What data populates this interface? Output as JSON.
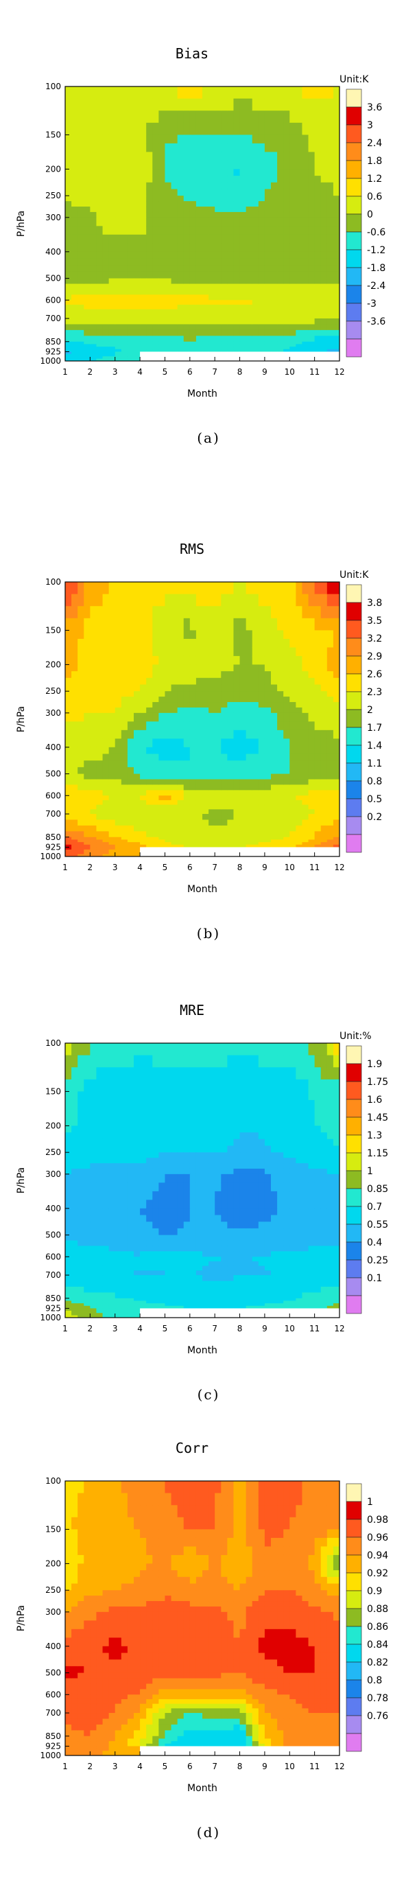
{
  "chart_data": [
    {
      "type": "heatmap",
      "title": "Bias",
      "panel_label": "(a)",
      "xlabel": "Month",
      "ylabel": "P/hPa",
      "x": [
        1,
        2,
        3,
        4,
        5,
        6,
        7,
        8,
        9,
        10,
        11,
        12
      ],
      "y": [
        100,
        150,
        200,
        250,
        300,
        400,
        500,
        600,
        700,
        850,
        925,
        1000
      ],
      "y_scale": "log",
      "unit": "Unit:K",
      "legend_levels": [
        "3.6",
        "3",
        "2.4",
        "1.8",
        "1.2",
        "0.6",
        "0",
        "-0.6",
        "-1.2",
        "-1.8",
        "-2.4",
        "-3",
        "-3.6"
      ],
      "colors": [
        "#fff6b3",
        "#e00000",
        "#ff5a1f",
        "#ff8c1a",
        "#ffb000",
        "#ffe000",
        "#d6ec10",
        "#8dbb22",
        "#22e8d0",
        "#00d8ee",
        "#22b8f5",
        "#1b84ea",
        "#5d7cf0",
        "#a78bf0",
        "#e07cf0"
      ],
      "z": [
        [
          0.5,
          0.6,
          0.4,
          0.3,
          0.6,
          0.9,
          0.7,
          0.2,
          0.4,
          0.6,
          0.8,
          0.6
        ],
        [
          0.3,
          0.5,
          0.2,
          0.1,
          -0.5,
          -0.7,
          -0.7,
          -0.6,
          -0.5,
          -0.4,
          0.1,
          0.3
        ],
        [
          0.4,
          0.3,
          0.2,
          0.6,
          -0.7,
          -0.9,
          -1.0,
          -1.3,
          -0.8,
          -0.5,
          0.0,
          0.2
        ],
        [
          0.1,
          0.2,
          0.3,
          0.1,
          -0.5,
          -0.7,
          -0.8,
          -0.9,
          -0.6,
          -0.4,
          -0.2,
          0.0
        ],
        [
          -0.2,
          -0.1,
          0.3,
          0.2,
          -0.3,
          -0.4,
          -0.5,
          -0.5,
          -0.4,
          -0.3,
          -0.3,
          -0.3
        ],
        [
          -0.3,
          -0.3,
          -0.2,
          -0.2,
          -0.3,
          -0.3,
          -0.3,
          -0.4,
          -0.3,
          -0.3,
          -0.3,
          -0.3
        ],
        [
          -0.2,
          -0.2,
          -0.1,
          -0.1,
          -0.1,
          -0.2,
          -0.2,
          -0.2,
          -0.1,
          -0.1,
          -0.1,
          -0.1
        ],
        [
          0.7,
          0.8,
          0.9,
          1.0,
          0.9,
          0.8,
          0.7,
          0.7,
          0.6,
          0.5,
          0.5,
          0.6
        ],
        [
          0.2,
          0.3,
          0.3,
          0.2,
          0.2,
          0.2,
          0.3,
          0.3,
          0.3,
          0.3,
          0.2,
          0.2
        ],
        [
          -1.2,
          -1.1,
          -1.0,
          -0.9,
          -0.8,
          -0.7,
          -0.8,
          -0.8,
          -0.9,
          -1.0,
          -1.4,
          -1.5
        ],
        [
          -1.9,
          -1.5,
          -1.3,
          -1.1,
          -1.0,
          -0.9,
          -0.9,
          -1.0,
          -1.1,
          -1.3,
          -1.6,
          -2.0
        ],
        [
          -1.5,
          -1.2,
          -1.0,
          null,
          null,
          null,
          null,
          null,
          null,
          null,
          null,
          null
        ]
      ]
    },
    {
      "type": "heatmap",
      "title": "RMS",
      "panel_label": "(b)",
      "xlabel": "Month",
      "ylabel": "P/hPa",
      "x": [
        1,
        2,
        3,
        4,
        5,
        6,
        7,
        8,
        9,
        10,
        11,
        12
      ],
      "y": [
        100,
        150,
        200,
        250,
        300,
        400,
        500,
        600,
        700,
        850,
        925,
        1000
      ],
      "y_scale": "log",
      "unit": "Unit:K",
      "legend_levels": [
        "3.8",
        "3.5",
        "3.2",
        "2.9",
        "2.6",
        "2.3",
        "2",
        "1.7",
        "1.4",
        "1.1",
        "0.8",
        "0.5",
        "0.2"
      ],
      "colors": [
        "#fff6b3",
        "#e00000",
        "#ff5a1f",
        "#ff8c1a",
        "#ffb000",
        "#ffe000",
        "#d6ec10",
        "#8dbb22",
        "#22e8d0",
        "#00d8ee",
        "#22b8f5",
        "#1b84ea",
        "#5d7cf0",
        "#a78bf0",
        "#e07cf0"
      ],
      "z": [
        [
          3.6,
          2.8,
          2.6,
          2.5,
          2.4,
          2.5,
          2.5,
          2.3,
          2.5,
          2.5,
          3.3,
          3.9
        ],
        [
          2.8,
          2.5,
          2.3,
          2.4,
          2.1,
          1.9,
          2.2,
          1.9,
          2.1,
          2.4,
          2.5,
          2.6
        ],
        [
          2.7,
          2.5,
          2.4,
          2.5,
          2.2,
          2.2,
          2.1,
          2.0,
          2.0,
          2.2,
          2.4,
          2.8
        ],
        [
          2.5,
          2.4,
          2.4,
          2.3,
          2.0,
          1.9,
          1.9,
          1.8,
          1.9,
          2.1,
          2.2,
          2.4
        ],
        [
          2.4,
          2.3,
          2.3,
          2.0,
          1.7,
          1.6,
          1.7,
          1.5,
          1.6,
          1.9,
          2.1,
          2.2
        ],
        [
          2.0,
          2.1,
          2.0,
          1.4,
          1.3,
          1.4,
          1.4,
          1.3,
          1.4,
          1.7,
          1.8,
          1.9
        ],
        [
          2.1,
          1.9,
          1.9,
          1.6,
          1.5,
          1.4,
          1.5,
          1.5,
          1.6,
          1.7,
          1.8,
          1.9
        ],
        [
          2.6,
          2.4,
          2.3,
          2.3,
          2.8,
          2.2,
          2.2,
          2.2,
          2.2,
          2.3,
          2.4,
          2.5
        ],
        [
          2.4,
          2.3,
          2.1,
          2.0,
          2.0,
          2.1,
          1.9,
          2.0,
          2.0,
          2.1,
          2.3,
          2.5
        ],
        [
          3.2,
          2.9,
          2.6,
          2.4,
          2.2,
          2.1,
          2.1,
          2.1,
          2.2,
          2.3,
          2.6,
          3.0
        ],
        [
          3.6,
          3.2,
          2.9,
          2.7,
          2.4,
          2.3,
          2.3,
          2.3,
          2.4,
          2.5,
          2.9,
          3.3
        ],
        [
          3.4,
          3.0,
          2.8,
          null,
          null,
          null,
          null,
          null,
          null,
          null,
          null,
          null
        ]
      ]
    },
    {
      "type": "heatmap",
      "title": "MRE",
      "panel_label": "(c)",
      "xlabel": "Month",
      "ylabel": "P/hPa",
      "x": [
        1,
        2,
        3,
        4,
        5,
        6,
        7,
        8,
        9,
        10,
        11,
        12
      ],
      "y": [
        100,
        150,
        200,
        250,
        300,
        400,
        500,
        600,
        700,
        850,
        925,
        1000
      ],
      "y_scale": "log",
      "unit": "Unit:%",
      "legend_levels": [
        "1.9",
        "1.75",
        "1.6",
        "1.45",
        "1.3",
        "1.15",
        "1",
        "0.85",
        "0.7",
        "0.55",
        "0.4",
        "0.25",
        "0.1"
      ],
      "colors": [
        "#fff6b3",
        "#e00000",
        "#ff5a1f",
        "#ff8c1a",
        "#ffb000",
        "#ffe000",
        "#d6ec10",
        "#8dbb22",
        "#22e8d0",
        "#00d8ee",
        "#22b8f5",
        "#1b84ea",
        "#5d7cf0",
        "#a78bf0",
        "#e07cf0"
      ],
      "z": [
        [
          1.1,
          0.85,
          0.8,
          0.75,
          0.8,
          0.8,
          0.8,
          0.75,
          0.8,
          0.8,
          0.9,
          1.25
        ],
        [
          0.78,
          0.62,
          0.58,
          0.6,
          0.55,
          0.58,
          0.58,
          0.55,
          0.55,
          0.6,
          0.72,
          0.8
        ],
        [
          0.72,
          0.66,
          0.62,
          0.66,
          0.58,
          0.6,
          0.62,
          0.56,
          0.56,
          0.62,
          0.7,
          0.75
        ],
        [
          0.66,
          0.62,
          0.6,
          0.62,
          0.56,
          0.56,
          0.56,
          0.52,
          0.54,
          0.58,
          0.64,
          0.68
        ],
        [
          0.55,
          0.5,
          0.5,
          0.5,
          0.4,
          0.4,
          0.42,
          0.36,
          0.38,
          0.45,
          0.52,
          0.55
        ],
        [
          0.5,
          0.48,
          0.46,
          0.4,
          0.3,
          0.4,
          0.4,
          0.32,
          0.36,
          0.44,
          0.48,
          0.5
        ],
        [
          0.52,
          0.5,
          0.48,
          0.44,
          0.4,
          0.42,
          0.42,
          0.42,
          0.44,
          0.46,
          0.48,
          0.5
        ],
        [
          0.64,
          0.6,
          0.58,
          0.56,
          0.62,
          0.58,
          0.56,
          0.54,
          0.56,
          0.58,
          0.6,
          0.64
        ],
        [
          0.6,
          0.58,
          0.56,
          0.54,
          0.54,
          0.56,
          0.52,
          0.54,
          0.54,
          0.56,
          0.6,
          0.64
        ],
        [
          0.8,
          0.76,
          0.72,
          0.68,
          0.66,
          0.64,
          0.64,
          0.64,
          0.66,
          0.68,
          0.74,
          0.8
        ],
        [
          0.98,
          0.86,
          0.8,
          0.76,
          0.72,
          0.7,
          0.7,
          0.7,
          0.72,
          0.76,
          0.82,
          0.9
        ],
        [
          1.1,
          0.9,
          0.8,
          null,
          null,
          null,
          null,
          null,
          null,
          null,
          null,
          null
        ]
      ]
    },
    {
      "type": "heatmap",
      "title": "Corr",
      "panel_label": "(d)",
      "xlabel": "Month",
      "ylabel": "P/hPa",
      "x": [
        1,
        2,
        3,
        4,
        5,
        6,
        7,
        8,
        9,
        10,
        11,
        12
      ],
      "y": [
        100,
        150,
        200,
        250,
        300,
        400,
        500,
        600,
        700,
        850,
        925,
        1000
      ],
      "y_scale": "log",
      "unit": "",
      "legend_levels": [
        "1",
        "0.98",
        "0.96",
        "0.94",
        "0.92",
        "0.9",
        "0.88",
        "0.86",
        "0.84",
        "0.82",
        "0.8",
        "0.78",
        "0.76"
      ],
      "colors": [
        "#fff6b3",
        "#e00000",
        "#ff5a1f",
        "#ff8c1a",
        "#ffb000",
        "#ffe000",
        "#d6ec10",
        "#8dbb22",
        "#22e8d0",
        "#00d8ee",
        "#22b8f5",
        "#1b84ea",
        "#5d7cf0",
        "#a78bf0",
        "#e07cf0"
      ],
      "z": [
        [
          0.91,
          0.925,
          0.935,
          0.95,
          0.96,
          0.965,
          0.965,
          0.93,
          0.975,
          0.97,
          0.955,
          0.945
        ],
        [
          0.915,
          0.93,
          0.935,
          0.94,
          0.955,
          0.96,
          0.96,
          0.935,
          0.965,
          0.96,
          0.95,
          0.94
        ],
        [
          0.91,
          0.925,
          0.93,
          0.935,
          0.945,
          0.92,
          0.945,
          0.92,
          0.955,
          0.95,
          0.935,
          0.84
        ],
        [
          0.915,
          0.935,
          0.94,
          0.945,
          0.955,
          0.95,
          0.95,
          0.94,
          0.96,
          0.96,
          0.945,
          0.93
        ],
        [
          0.94,
          0.955,
          0.965,
          0.965,
          0.97,
          0.965,
          0.965,
          0.955,
          0.975,
          0.975,
          0.965,
          0.955
        ],
        [
          0.965,
          0.975,
          0.985,
          0.975,
          0.975,
          0.97,
          0.97,
          0.96,
          0.985,
          0.985,
          0.98,
          0.97
        ],
        [
          0.985,
          0.98,
          0.975,
          0.97,
          0.965,
          0.965,
          0.965,
          0.96,
          0.975,
          0.98,
          0.98,
          0.975
        ],
        [
          0.96,
          0.965,
          0.965,
          0.96,
          0.93,
          0.93,
          0.935,
          0.93,
          0.955,
          0.96,
          0.965,
          0.965
        ],
        [
          0.965,
          0.97,
          0.96,
          0.935,
          0.88,
          0.86,
          0.87,
          0.87,
          0.94,
          0.955,
          0.96,
          0.96
        ],
        [
          0.955,
          0.96,
          0.94,
          0.91,
          0.86,
          0.83,
          0.83,
          0.82,
          0.92,
          0.945,
          0.955,
          0.96
        ],
        [
          0.95,
          0.955,
          0.935,
          0.9,
          0.84,
          0.82,
          0.82,
          0.82,
          0.91,
          0.945,
          0.955,
          0.96
        ],
        [
          0.945,
          0.95,
          0.93,
          null,
          null,
          null,
          null,
          null,
          null,
          null,
          null,
          null
        ]
      ]
    }
  ]
}
